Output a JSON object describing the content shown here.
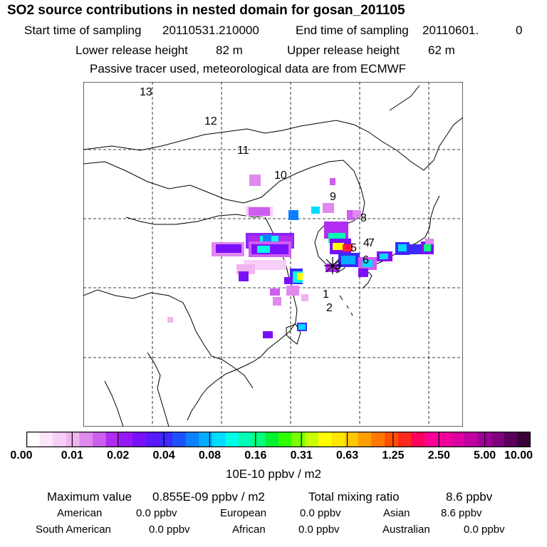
{
  "title": "SO2 source contributions in nested domain for gosan_201105",
  "header": {
    "start_label": "Start time of sampling",
    "start_value": "20110531.210000",
    "end_label": "End time of sampling",
    "end_value": "20110601.",
    "end_suffix": "0",
    "lower_label": "Lower release height",
    "lower_value": "82 m",
    "upper_label": "Upper release height",
    "upper_value": "62 m",
    "tracer_note": "Passive tracer used, meteorological data are from ECMWF"
  },
  "map": {
    "day_labels": [
      "13",
      "12",
      "11",
      "10",
      "9",
      "8",
      "7",
      "4",
      "5",
      "3",
      "6",
      "1",
      "2"
    ],
    "release_marker": "release-site-star"
  },
  "colorbar": {
    "colors": [
      "#ffffff",
      "#fbe6fb",
      "#f7cef7",
      "#f1b4f1",
      "#e089ee",
      "#cd5ef0",
      "#b02cf0",
      "#9618f4",
      "#7a10fa",
      "#5a18fc",
      "#3c2aff",
      "#1f52ff",
      "#0a82ff",
      "#06acff",
      "#00dcff",
      "#00ffe6",
      "#00ffb4",
      "#00ff7d",
      "#00f032",
      "#30ff00",
      "#7aff00",
      "#c8ff00",
      "#ffff00",
      "#ffe600",
      "#ffc800",
      "#ffa000",
      "#ff7800",
      "#ff5000",
      "#ff2a1e",
      "#ff005a",
      "#ff0096",
      "#f0009b",
      "#dc00a0",
      "#c000a0",
      "#a00096",
      "#80007d",
      "#5a005a",
      "#3a003a"
    ],
    "ticks": [
      "0.00",
      "0.01",
      "0.02",
      "0.04",
      "0.08",
      "0.16",
      "0.31",
      "0.63",
      "1.25",
      "2.50",
      "5.00",
      "10.00"
    ],
    "units": "10E-10 ppbv / m2"
  },
  "stats": {
    "max_label": "Maximum value",
    "max_value": "0.855E-09 ppbv / m2",
    "total_label": "Total mixing ratio",
    "total_value": "8.6 ppbv"
  },
  "sources": [
    {
      "name": "American",
      "value": "0.0 ppbv"
    },
    {
      "name": "European",
      "value": "0.0 ppbv"
    },
    {
      "name": "Asian",
      "value": "8.6 ppbv"
    },
    {
      "name": "South American",
      "value": "0.0 ppbv"
    },
    {
      "name": "African",
      "value": "0.0 ppbv"
    },
    {
      "name": "Australian",
      "value": "0.0 ppbv"
    }
  ],
  "colors": {
    "background": "#ffffff",
    "coast": "#000000"
  }
}
